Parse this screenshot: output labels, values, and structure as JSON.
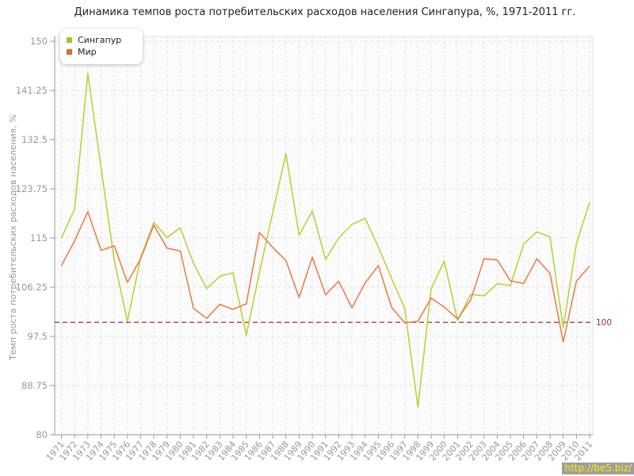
{
  "title": "Динамика темпов роста потребительских расходов населения Сингапура, %, 1971-2011 гг.",
  "y_axis_title": "Темп роста потребительских расходов населения, %",
  "watermark": "http://be5.biz/",
  "legend": [
    {
      "label": "Сингапур",
      "color": "#a4c32a"
    },
    {
      "label": "Мир",
      "color": "#dd6b2e"
    }
  ],
  "reference_line": {
    "value": 100,
    "label": "100",
    "color": "#993333"
  },
  "colors": {
    "singapore_line": "#b9d33c",
    "world_line": "#e8814c",
    "grid": "#e2e2e2",
    "axis": "#999999",
    "tick_text": "#999999",
    "plot_background": "#fbfbfb"
  },
  "chart_data": {
    "type": "line",
    "title": "Динамика темпов роста потребительских расходов населения Сингапура, %, 1971-2011 гг.",
    "xlabel": "",
    "ylabel": "Темп роста потребительских расходов населения, %",
    "ylim": [
      80,
      150
    ],
    "yticks": [
      150,
      141.25,
      132.5,
      123.75,
      115,
      106.25,
      97.5,
      88.75,
      80
    ],
    "grid": true,
    "legend_position": "top-left",
    "x": [
      1971,
      1972,
      1973,
      1974,
      1975,
      1976,
      1977,
      1978,
      1979,
      1980,
      1981,
      1982,
      1983,
      1984,
      1985,
      1986,
      1987,
      1988,
      1989,
      1990,
      1991,
      1992,
      1993,
      1994,
      1995,
      1996,
      1997,
      1998,
      1999,
      2000,
      2001,
      2002,
      2003,
      2004,
      2005,
      2006,
      2007,
      2008,
      2009,
      2010,
      2011
    ],
    "series": [
      {
        "name": "Сингапур",
        "values": [
          115.0,
          120.2,
          144.3,
          127.5,
          111.0,
          100.2,
          111.5,
          117.8,
          115.1,
          116.8,
          110.5,
          106.0,
          108.2,
          108.8,
          97.7,
          108.9,
          119.5,
          130.0,
          115.5,
          119.8,
          111.2,
          115.0,
          117.4,
          118.5,
          113.4,
          107.8,
          102.5,
          84.9,
          106.0,
          110.9,
          100.3,
          105.0,
          104.7,
          106.9,
          106.5,
          113.9,
          116.1,
          115.2,
          99.0,
          114.0,
          121.4
        ]
      },
      {
        "name": "Мир",
        "values": [
          110.1,
          114.5,
          119.7,
          112.8,
          113.6,
          107.1,
          111.3,
          117.3,
          113.2,
          112.7,
          102.5,
          100.7,
          103.2,
          102.3,
          103.3,
          116.0,
          113.3,
          111.0,
          104.4,
          111.6,
          104.9,
          107.3,
          102.6,
          107.0,
          110.1,
          102.7,
          99.9,
          100.2,
          104.3,
          102.7,
          100.6,
          104.0,
          111.3,
          111.1,
          107.4,
          106.9,
          111.3,
          108.7,
          96.5,
          107.3,
          110.0
        ]
      }
    ]
  }
}
